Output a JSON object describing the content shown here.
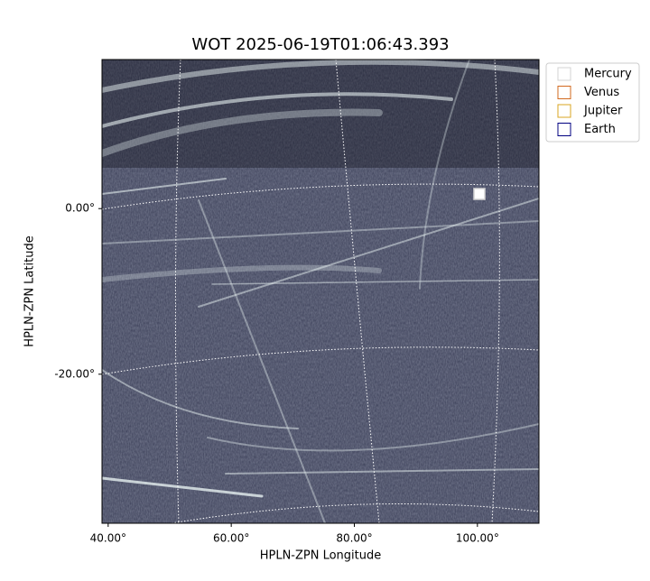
{
  "chart_data": {
    "type": "image",
    "title": "WOT 2025-06-19T01:06:43.393",
    "xlabel": "HPLN-ZPN Longitude",
    "ylabel": "HPLN-ZPN Latitude",
    "xlim": [
      39,
      110
    ],
    "ylim": [
      -38,
      18
    ],
    "xticks": [
      {
        "value": 40,
        "label": "40.00°"
      },
      {
        "value": 60,
        "label": "60.00°"
      },
      {
        "value": 80,
        "label": "80.00°"
      },
      {
        "value": 100,
        "label": "100.00°"
      }
    ],
    "yticks": [
      {
        "value": 0,
        "label": "0.00°"
      },
      {
        "value": -20,
        "label": "-20.00°"
      }
    ],
    "grid": true,
    "legend_position": "outside-upper-right",
    "legend": [
      {
        "name": "Mercury",
        "color": "#d3d3d3"
      },
      {
        "name": "Venus",
        "color": "#d2691e"
      },
      {
        "name": "Jupiter",
        "color": "#daa520"
      },
      {
        "name": "Earth",
        "color": "#000080"
      }
    ]
  }
}
